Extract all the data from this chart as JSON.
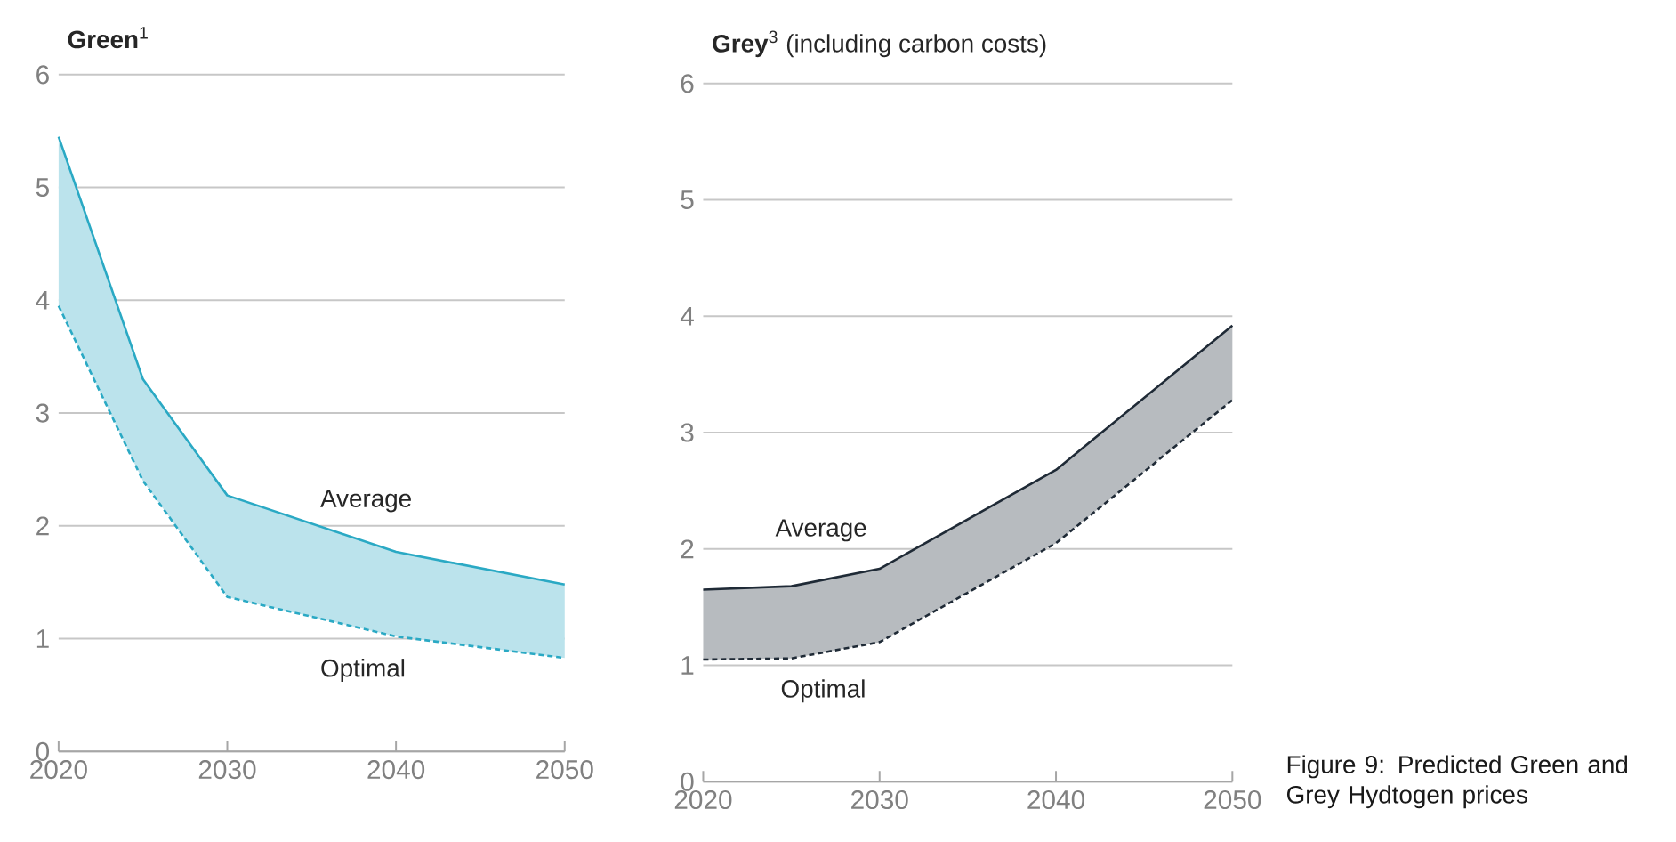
{
  "chart_data": [
    {
      "type": "line",
      "title": "**Green**$^{1}$",
      "x": [
        2020,
        2025,
        2030,
        2040,
        2050
      ],
      "xlim": [
        2020,
        2050
      ],
      "xticks": [
        2020,
        2030,
        2040,
        2050
      ],
      "ylim": [
        0,
        6
      ],
      "yticks": [
        0,
        1,
        2,
        3,
        4,
        5,
        6
      ],
      "grid": "y",
      "marker": "none",
      "series": [
        {
          "name": "Average",
          "color": "#2aa9c4",
          "line_style": "solid",
          "values": [
            5.45,
            3.3,
            2.27,
            1.77,
            1.48
          ],
          "upper": [
            5.45,
            3.3,
            2.27,
            1.77,
            1.48
          ],
          "lower": [
            3.95,
            2.4,
            1.37,
            1.02,
            0.83
          ]
        },
        {
          "name": "Optimal",
          "color": "#2aa9c4",
          "line_style": "dashed",
          "values": [
            3.95,
            2.4,
            1.37,
            1.02,
            0.83
          ]
        }
      ]
    },
    {
      "type": "line",
      "title": "**Grey**$^{3}$ (including carbon costs)",
      "x": [
        2020,
        2025,
        2030,
        2040,
        2050
      ],
      "xlim": [
        2020,
        2050
      ],
      "xticks": [
        2020,
        2030,
        2040,
        2050
      ],
      "ylim": [
        0,
        6
      ],
      "yticks": [
        0,
        1,
        2,
        3,
        4,
        5,
        6
      ],
      "grid": "y",
      "marker": "none",
      "series": [
        {
          "name": "Average",
          "color": "#1f2a36",
          "line_style": "solid",
          "values": [
            1.65,
            1.68,
            1.83,
            2.68,
            3.92
          ],
          "upper": [
            1.65,
            1.68,
            1.83,
            2.68,
            3.92
          ],
          "lower": [
            1.05,
            1.06,
            1.2,
            2.05,
            3.28
          ]
        },
        {
          "name": "Optimal",
          "color": "#1f2a36",
          "line_style": "dashed",
          "values": [
            1.05,
            1.06,
            1.2,
            2.05,
            3.28
          ]
        }
      ],
      "annotations": [
        "Figure 9: Predicted Green and Grey Hydtogen prices"
      ]
    }
  ]
}
